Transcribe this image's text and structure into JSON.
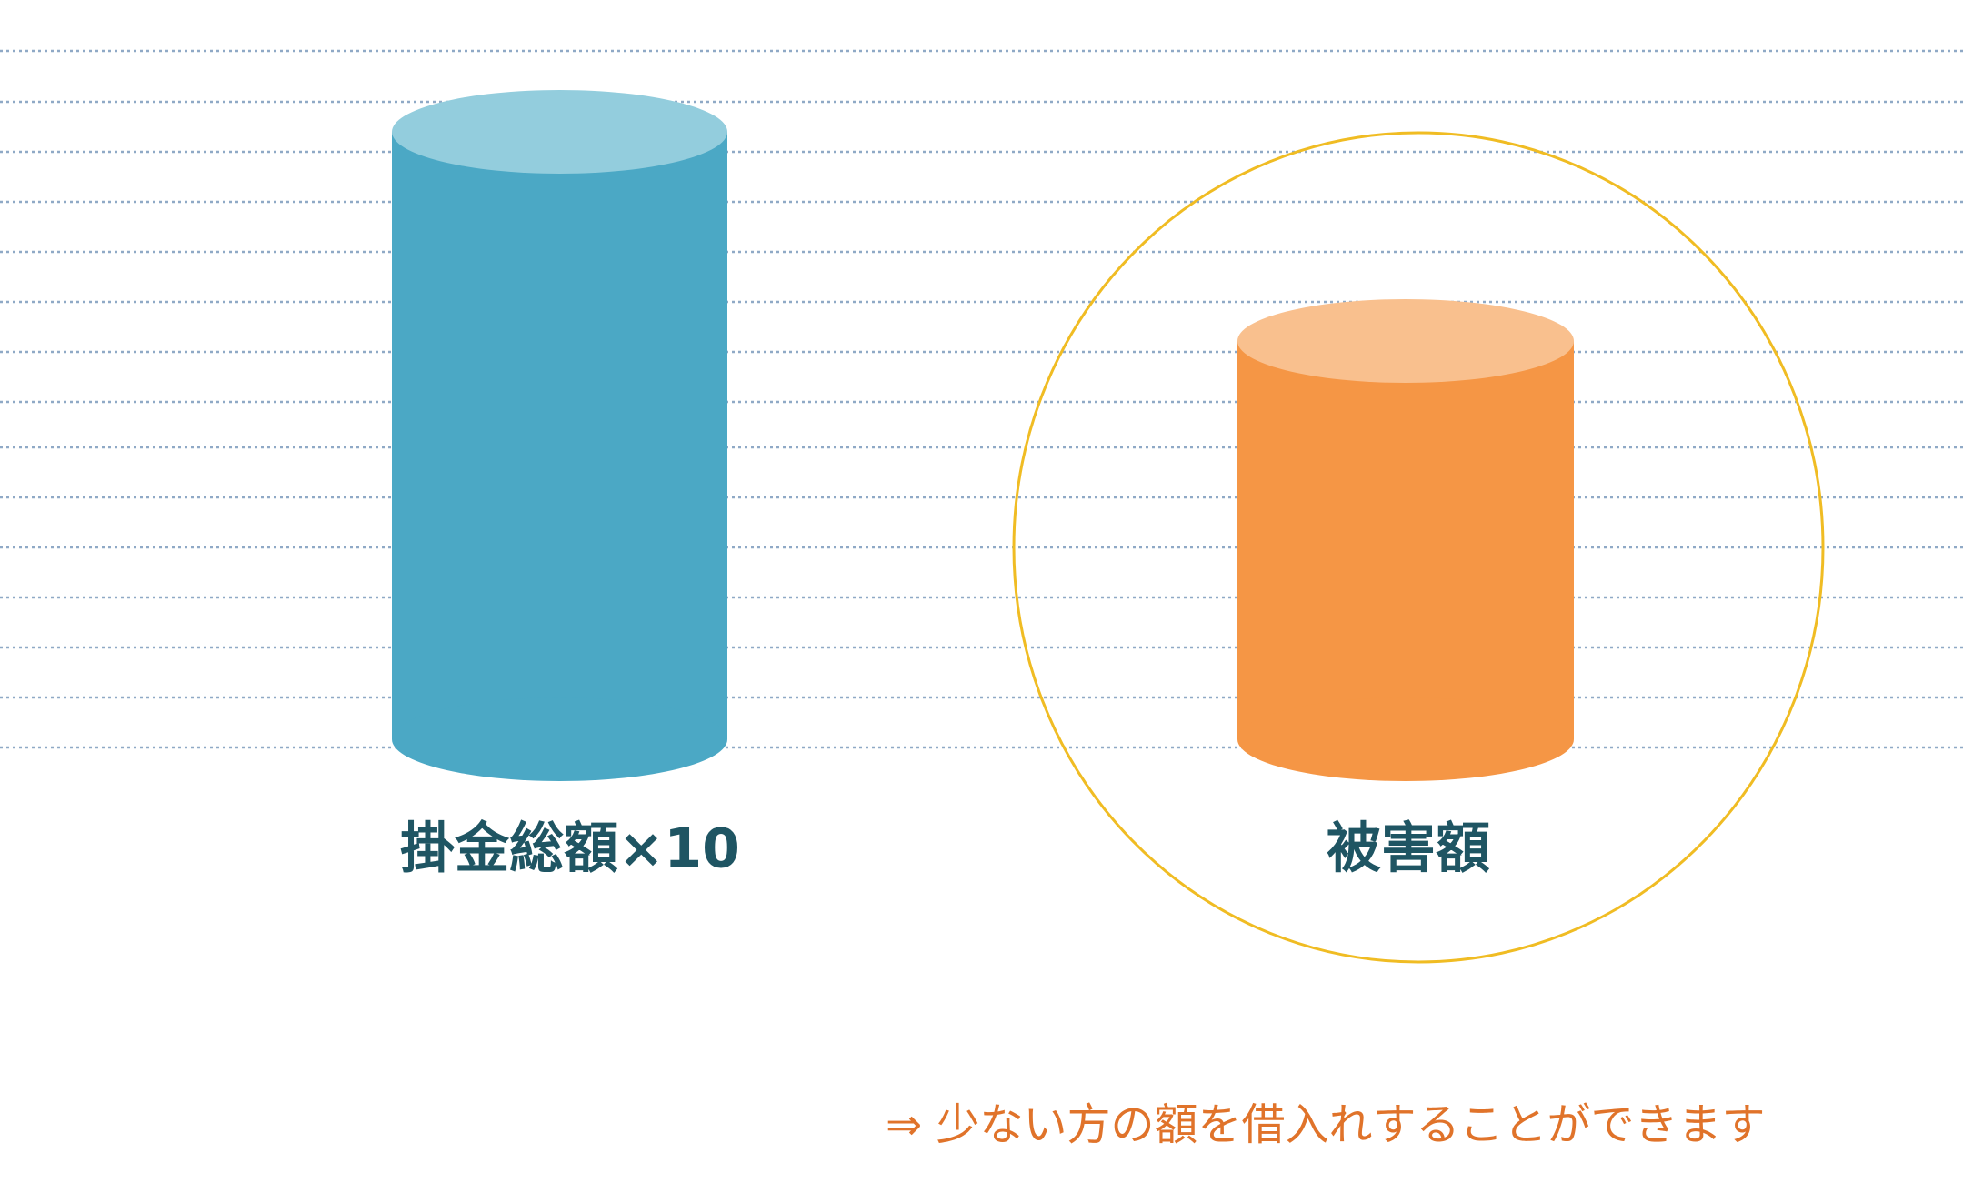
{
  "labels": [
    "掛金総額×10",
    "被害額"
  ],
  "note": "⇒ 少ない方の額を借入れすることができます"
}
